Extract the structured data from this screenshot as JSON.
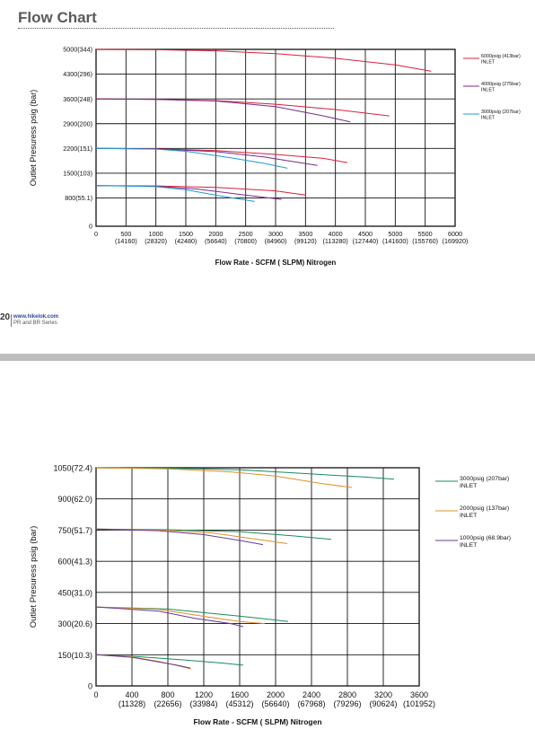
{
  "page": {
    "title": "Flow Chart",
    "page_number": "20",
    "url": "www.hikelok.com",
    "series": "PR and BR Series"
  },
  "chart_data": [
    {
      "type": "line",
      "xlabel": "Flow Rate - SCFM ( SLPM) Nitrogen",
      "ylabel": "Outlet Presuress psig (bar)",
      "xlim": [
        0,
        6000
      ],
      "ylim": [
        0,
        5000
      ],
      "grid": true,
      "legend_position": "right",
      "x_ticks": [
        {
          "value": 0,
          "label": "0",
          "sub": ""
        },
        {
          "value": 500,
          "label": "500",
          "sub": "(14160)"
        },
        {
          "value": 1000,
          "label": "1000",
          "sub": "(28320)"
        },
        {
          "value": 1500,
          "label": "1500",
          "sub": "(42480)"
        },
        {
          "value": 2000,
          "label": "2000",
          "sub": "(56640)"
        },
        {
          "value": 2500,
          "label": "2500",
          "sub": "(70800)"
        },
        {
          "value": 3000,
          "label": "3000",
          "sub": "(84960)"
        },
        {
          "value": 3500,
          "label": "3500",
          "sub": "(99120)"
        },
        {
          "value": 4000,
          "label": "4000",
          "sub": "(113280)"
        },
        {
          "value": 4500,
          "label": "4500",
          "sub": "(127440)"
        },
        {
          "value": 5000,
          "label": "5000",
          "sub": "(141600)"
        },
        {
          "value": 5500,
          "label": "5500",
          "sub": "(155760)"
        },
        {
          "value": 6000,
          "label": "6000",
          "sub": "(169920)"
        }
      ],
      "y_ticks": [
        {
          "value": 0,
          "label": "0"
        },
        {
          "value": 800,
          "label": "800(55.1)"
        },
        {
          "value": 1500,
          "label": "1500(103)"
        },
        {
          "value": 2200,
          "label": "2200(151)"
        },
        {
          "value": 2900,
          "label": "2900(200)"
        },
        {
          "value": 3600,
          "label": "3600(248)"
        },
        {
          "value": 4300,
          "label": "4300(296)"
        },
        {
          "value": 5000,
          "label": "5000(344)"
        }
      ],
      "legend": [
        {
          "label": "6000psig (413bar)",
          "sub": "INLET",
          "color": "#d8203a"
        },
        {
          "label": "4000psig (275bar)",
          "sub": "INLET",
          "color": "#7b2a8a"
        },
        {
          "label": "3000psig (207bar)",
          "sub": "INLET",
          "color": "#1f9ccf"
        }
      ],
      "series": [
        {
          "color": "#d8203a",
          "points": [
            [
              0,
              5000
            ],
            [
              1000,
              4990
            ],
            [
              2000,
              4960
            ],
            [
              3000,
              4880
            ],
            [
              4000,
              4750
            ],
            [
              5000,
              4560
            ],
            [
              5600,
              4380
            ]
          ]
        },
        {
          "color": "#d8203a",
          "points": [
            [
              0,
              3600
            ],
            [
              1000,
              3590
            ],
            [
              2000,
              3550
            ],
            [
              3000,
              3450
            ],
            [
              4000,
              3300
            ],
            [
              4900,
              3120
            ]
          ]
        },
        {
          "color": "#7b2a8a",
          "points": [
            [
              0,
              3600
            ],
            [
              1000,
              3585
            ],
            [
              2000,
              3540
            ],
            [
              3000,
              3380
            ],
            [
              3800,
              3120
            ],
            [
              4250,
              2950
            ]
          ]
        },
        {
          "color": "#d8203a",
          "points": [
            [
              0,
              2200
            ],
            [
              1000,
              2190
            ],
            [
              2000,
              2140
            ],
            [
              3000,
              2030
            ],
            [
              3800,
              1920
            ],
            [
              4200,
              1800
            ]
          ]
        },
        {
          "color": "#7b2a8a",
          "points": [
            [
              0,
              2200
            ],
            [
              1000,
              2185
            ],
            [
              2000,
              2110
            ],
            [
              2800,
              1960
            ],
            [
              3400,
              1800
            ],
            [
              3700,
              1720
            ]
          ]
        },
        {
          "color": "#1f9ccf",
          "points": [
            [
              0,
              2200
            ],
            [
              1000,
              2180
            ],
            [
              1500,
              2120
            ],
            [
              2200,
              1950
            ],
            [
              2800,
              1780
            ],
            [
              3200,
              1640
            ]
          ]
        },
        {
          "color": "#d8203a",
          "points": [
            [
              0,
              1150
            ],
            [
              1000,
              1140
            ],
            [
              2000,
              1100
            ],
            [
              3000,
              1000
            ],
            [
              3500,
              880
            ]
          ]
        },
        {
          "color": "#7b2a8a",
          "points": [
            [
              0,
              1150
            ],
            [
              1000,
              1130
            ],
            [
              1700,
              1050
            ],
            [
              2400,
              900
            ],
            [
              3100,
              760
            ]
          ]
        },
        {
          "color": "#1f9ccf",
          "points": [
            [
              0,
              1150
            ],
            [
              1000,
              1120
            ],
            [
              1500,
              1030
            ],
            [
              2100,
              850
            ],
            [
              2650,
              700
            ]
          ]
        }
      ]
    },
    {
      "type": "line",
      "xlabel": "Flow Rate - SCFM ( SLPM) Nitrogen",
      "ylabel": "Outlet Presuress psig (bar)",
      "xlim": [
        0,
        3600
      ],
      "ylim": [
        0,
        1050
      ],
      "grid": true,
      "legend_position": "right",
      "x_ticks": [
        {
          "value": 0,
          "label": "0",
          "sub": ""
        },
        {
          "value": 400,
          "label": "400",
          "sub": "(11328)"
        },
        {
          "value": 800,
          "label": "800",
          "sub": "(22656)"
        },
        {
          "value": 1200,
          "label": "1200",
          "sub": "(33984)"
        },
        {
          "value": 1600,
          "label": "1600",
          "sub": "(45312)"
        },
        {
          "value": 2000,
          "label": "2000",
          "sub": "(56640)"
        },
        {
          "value": 2400,
          "label": "2400",
          "sub": "(67968)"
        },
        {
          "value": 2800,
          "label": "2800",
          "sub": "(79296)"
        },
        {
          "value": 3200,
          "label": "3200",
          "sub": "(90624)"
        },
        {
          "value": 3600,
          "label": "3600",
          "sub": "(101952)"
        }
      ],
      "y_ticks": [
        {
          "value": 0,
          "label": "0"
        },
        {
          "value": 150,
          "label": "150(10.3)"
        },
        {
          "value": 300,
          "label": "300(20.6)"
        },
        {
          "value": 450,
          "label": "450(31.0)"
        },
        {
          "value": 600,
          "label": "600(41.3)"
        },
        {
          "value": 750,
          "label": "750(51.7)"
        },
        {
          "value": 900,
          "label": "900(62.0)"
        },
        {
          "value": 1050,
          "label": "1050(72.4)"
        }
      ],
      "legend": [
        {
          "label": "3000psig (207bar)",
          "sub": "INLET",
          "color": "#1a8a5a"
        },
        {
          "label": "2000psig (137bar)",
          "sub": "INLET",
          "color": "#e0902a"
        },
        {
          "label": "1000psig (68.9bar)",
          "sub": "INLET",
          "color": "#6a3a9a"
        }
      ],
      "series": [
        {
          "color": "#1a8a5a",
          "points": [
            [
              0,
              1050
            ],
            [
              800,
              1048
            ],
            [
              1600,
              1040
            ],
            [
              2400,
              1020
            ],
            [
              3000,
              1005
            ],
            [
              3320,
              995
            ]
          ]
        },
        {
          "color": "#e0902a",
          "points": [
            [
              0,
              1050
            ],
            [
              800,
              1045
            ],
            [
              1500,
              1030
            ],
            [
              2000,
              1010
            ],
            [
              2500,
              975
            ],
            [
              2850,
              955
            ]
          ]
        },
        {
          "color": "#1a8a5a",
          "points": [
            [
              0,
              755
            ],
            [
              800,
              752
            ],
            [
              1600,
              742
            ],
            [
              2200,
              722
            ],
            [
              2620,
              705
            ]
          ]
        },
        {
          "color": "#e0902a",
          "points": [
            [
              0,
              755
            ],
            [
              800,
              749
            ],
            [
              1300,
              736
            ],
            [
              1800,
              705
            ],
            [
              2130,
              685
            ]
          ]
        },
        {
          "color": "#6a3a9a",
          "points": [
            [
              0,
              755
            ],
            [
              700,
              747
            ],
            [
              1200,
              728
            ],
            [
              1600,
              700
            ],
            [
              1860,
              680
            ]
          ]
        },
        {
          "color": "#1a8a5a",
          "points": [
            [
              0,
              380
            ],
            [
              800,
              370
            ],
            [
              1500,
              340
            ],
            [
              1900,
              322
            ],
            [
              2140,
              310
            ]
          ]
        },
        {
          "color": "#e0902a",
          "points": [
            [
              0,
              380
            ],
            [
              700,
              368
            ],
            [
              1200,
              335
            ],
            [
              1600,
              310
            ],
            [
              1880,
              300
            ]
          ]
        },
        {
          "color": "#6a3a9a",
          "points": [
            [
              0,
              380
            ],
            [
              700,
              360
            ],
            [
              1100,
              325
            ],
            [
              1500,
              300
            ],
            [
              1640,
              285
            ]
          ]
        },
        {
          "color": "#1a8a5a",
          "points": [
            [
              0,
              150
            ],
            [
              500,
              140
            ],
            [
              1000,
              124
            ],
            [
              1400,
              110
            ],
            [
              1640,
              100
            ]
          ]
        },
        {
          "color": "#e0902a",
          "points": [
            [
              0,
              150
            ],
            [
              400,
              140
            ],
            [
              700,
              118
            ],
            [
              900,
              98
            ],
            [
              1060,
              82
            ]
          ]
        },
        {
          "color": "#6a3a9a",
          "points": [
            [
              0,
              150
            ],
            [
              400,
              138
            ],
            [
              700,
              115
            ],
            [
              900,
              100
            ],
            [
              1050,
              86
            ]
          ]
        }
      ]
    }
  ]
}
